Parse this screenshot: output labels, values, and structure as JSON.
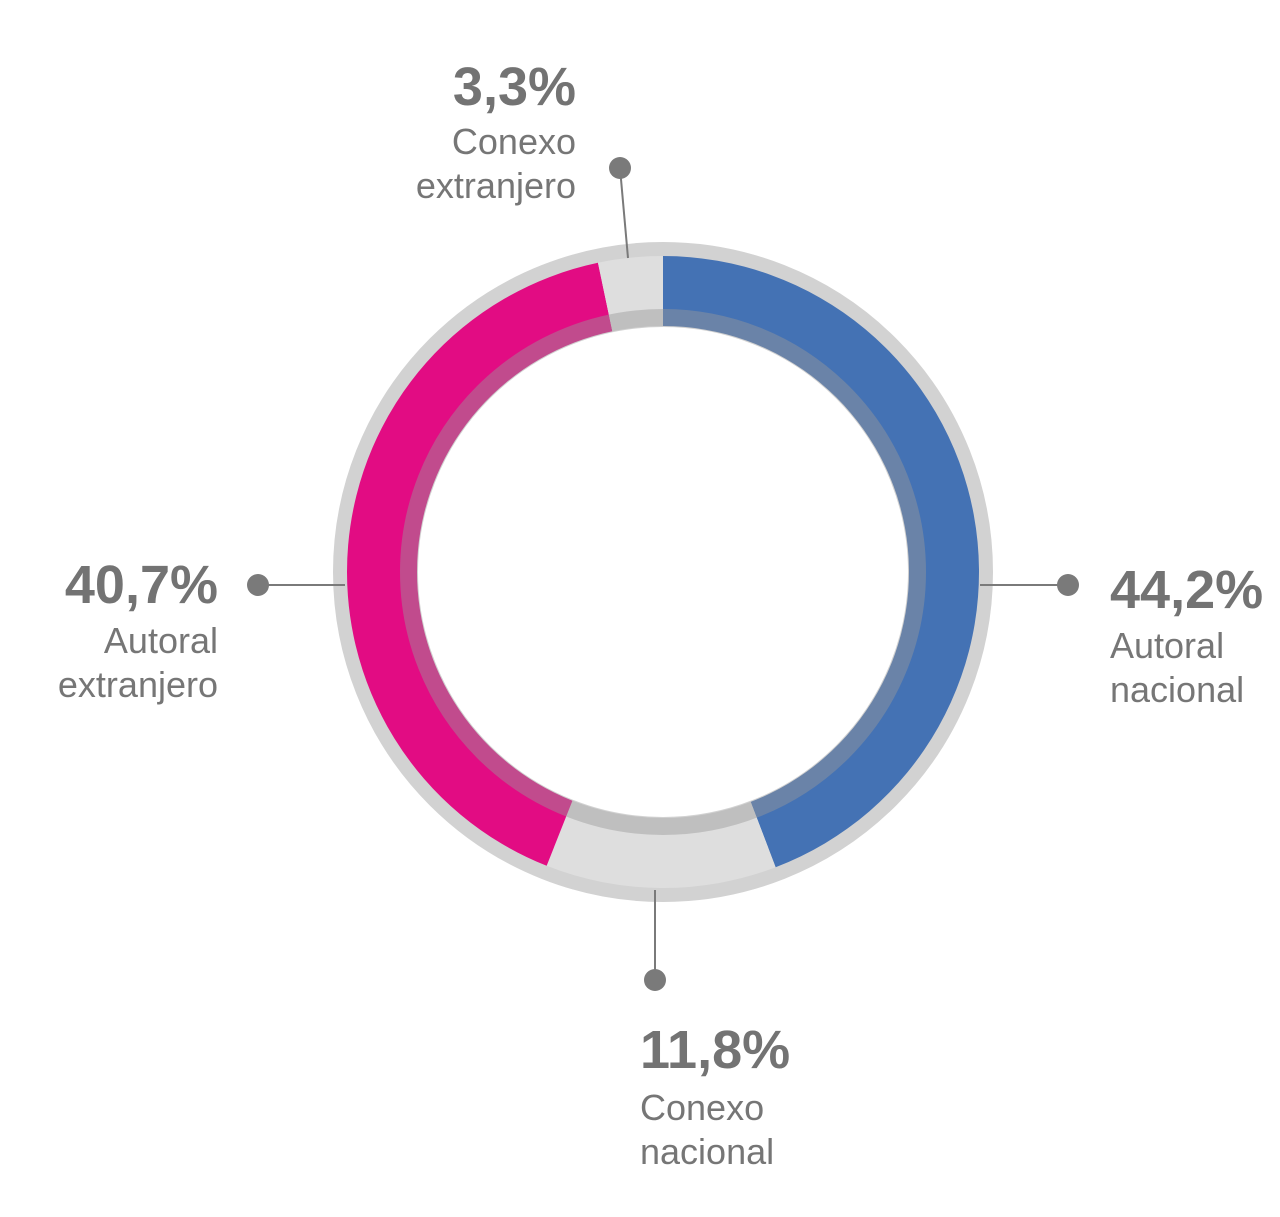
{
  "chart_data": {
    "type": "pie",
    "variant": "donut",
    "slices": [
      {
        "name_lines": [
          "Autoral",
          "nacional"
        ],
        "value": 44.2,
        "value_label": "44,2%",
        "color": "#4472b4"
      },
      {
        "name_lines": [
          "Conexo",
          "nacional"
        ],
        "value": 11.8,
        "value_label": "11,8%",
        "color": "#dedede"
      },
      {
        "name_lines": [
          "Autoral",
          "extranjero"
        ],
        "value": 40.7,
        "value_label": "40,7%",
        "color": "#e20c83"
      },
      {
        "name_lines": [
          "Conexo",
          "extranjero"
        ],
        "value": 3.3,
        "value_label": "3,3%",
        "color": "#dedede"
      }
    ],
    "start": "top",
    "direction": "clockwise",
    "legend": "none",
    "label_placement": "outside-with-leader-lines"
  },
  "colors": {
    "outer_ring": "#d2d2d2",
    "inner_ring_overlay": "#9a9a9a",
    "text_value": "#737373",
    "text_label": "#767676",
    "leader": "#7a7a7a"
  }
}
